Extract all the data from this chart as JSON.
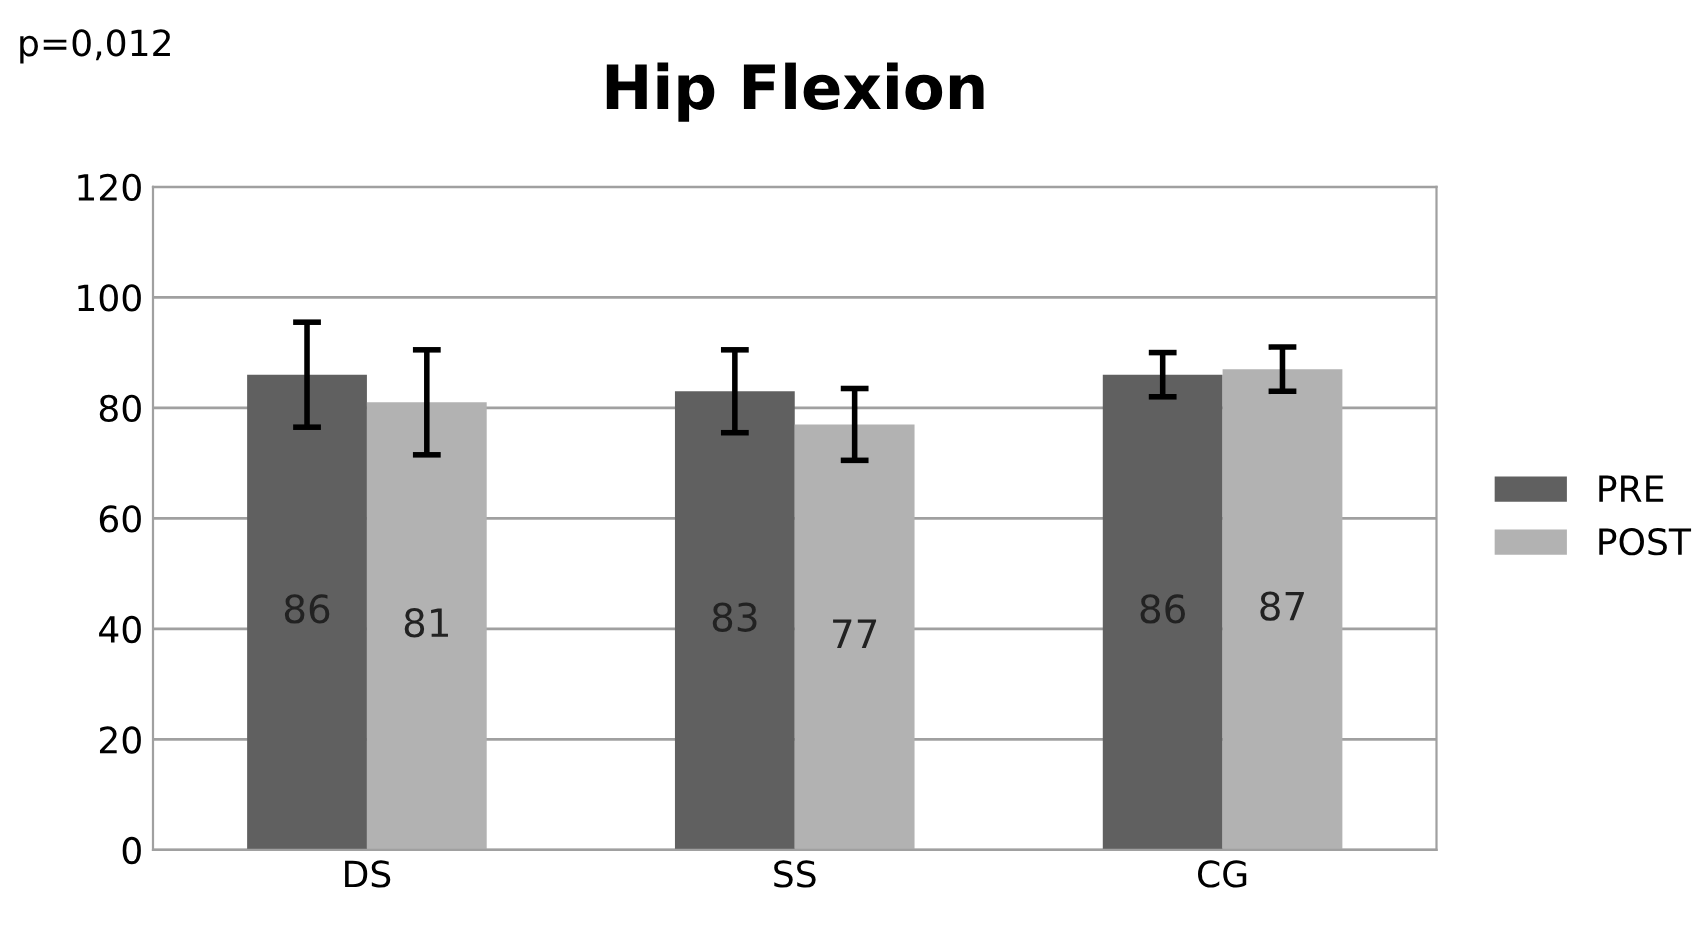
{
  "chart_data": {
    "type": "bar",
    "title": "Hip Flexion",
    "annotations": [
      "p=0,012"
    ],
    "categories": [
      "DS",
      "SS",
      "CG"
    ],
    "series": [
      {
        "name": "PRE",
        "color": "#606060",
        "values": [
          86,
          83,
          86
        ],
        "errors": [
          9.5,
          7.5,
          4
        ]
      },
      {
        "name": "POST",
        "color": "#b2b2b2",
        "values": [
          81,
          77,
          87
        ],
        "errors": [
          9.5,
          6.5,
          4
        ]
      }
    ],
    "ylim": [
      0,
      120
    ],
    "yticks": [
      0,
      20,
      40,
      60,
      80,
      100,
      120
    ],
    "grid": "y",
    "legend": "right",
    "data_labels": true
  }
}
